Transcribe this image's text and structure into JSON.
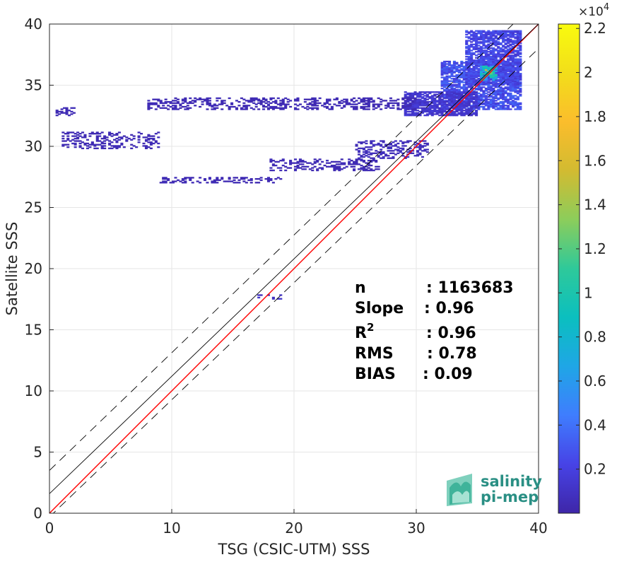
{
  "chart_data": {
    "type": "heatmap",
    "xlabel": "TSG (CSIC-UTM) SSS",
    "ylabel": "Satellite SSS",
    "xlim": [
      0,
      40
    ],
    "ylim": [
      0,
      40
    ],
    "xticks": [
      "0",
      "10",
      "20",
      "30",
      "40"
    ],
    "yticks": [
      "0",
      "5",
      "10",
      "15",
      "20",
      "25",
      "30",
      "35",
      "40"
    ],
    "grid": true,
    "colorbar": {
      "range": [
        0,
        2.22
      ],
      "multiplier": "×10",
      "multiplier_exp": "4",
      "ticks": [
        {
          "value": 0.2,
          "label": "0.2"
        },
        {
          "value": 0.4,
          "label": "0.4"
        },
        {
          "value": 0.6,
          "label": "0.6"
        },
        {
          "value": 0.8,
          "label": "0.8"
        },
        {
          "value": 1.0,
          "label": "1"
        },
        {
          "value": 1.2,
          "label": "1.2"
        },
        {
          "value": 1.4,
          "label": "1.4"
        },
        {
          "value": 1.6,
          "label": "1.6"
        },
        {
          "value": 1.8,
          "label": "1.8"
        },
        {
          "value": 2.0,
          "label": "2"
        },
        {
          "value": 2.2,
          "label": "2.2"
        }
      ],
      "colors": [
        "#3e26a8",
        "#4743e6",
        "#3f7dfe",
        "#1fa6e6",
        "#0bbfbf",
        "#2ec99a",
        "#8ccd5b",
        "#d2bb31",
        "#fbbd2c",
        "#f2de1a",
        "#f9fb0e"
      ]
    },
    "lines": [
      {
        "name": "identity",
        "color": "#ff0000",
        "points": [
          [
            0,
            0
          ],
          [
            40,
            40
          ]
        ]
      },
      {
        "name": "fit",
        "color": "#000000",
        "style": "solid",
        "points": [
          [
            0,
            1.6
          ],
          [
            40,
            40
          ]
        ]
      },
      {
        "name": "fit-upper",
        "color": "#000000",
        "style": "dashed",
        "points": [
          [
            0,
            3.5
          ],
          [
            40,
            42
          ]
        ]
      },
      {
        "name": "fit-lower",
        "color": "#000000",
        "style": "dashed",
        "points": [
          [
            0,
            -0.3
          ],
          [
            40,
            38
          ]
        ]
      }
    ],
    "density_regions": [
      {
        "x": [
          32.0,
          38.5
        ],
        "y": [
          33.0,
          37.0
        ],
        "level": 0.12
      },
      {
        "x": [
          34.0,
          38.5
        ],
        "y": [
          35.0,
          39.5
        ],
        "level": 0.1
      },
      {
        "x": [
          35.2,
          36.6
        ],
        "y": [
          35.4,
          36.6
        ],
        "level": 0.35
      },
      {
        "x": [
          35.6,
          36.2
        ],
        "y": [
          35.8,
          36.3
        ],
        "level": 0.55
      },
      {
        "x": [
          29.0,
          35.0
        ],
        "y": [
          32.5,
          34.5
        ],
        "level": 0.06
      },
      {
        "x": [
          8.0,
          30.0
        ],
        "y": [
          33.0,
          34.0
        ],
        "level": 0.02
      },
      {
        "x": [
          1.0,
          9.0
        ],
        "y": [
          29.8,
          31.2
        ],
        "level": 0.02
      },
      {
        "x": [
          9.0,
          19.0
        ],
        "y": [
          27.0,
          27.5
        ],
        "level": 0.02
      },
      {
        "x": [
          18.0,
          27.0
        ],
        "y": [
          28.0,
          29.0
        ],
        "level": 0.02
      },
      {
        "x": [
          25.0,
          31.0
        ],
        "y": [
          29.0,
          30.5
        ],
        "level": 0.03
      },
      {
        "x": [
          0.5,
          2.0
        ],
        "y": [
          32.5,
          33.2
        ],
        "level": 0.02
      },
      {
        "x": [
          17.0,
          19.0
        ],
        "y": [
          17.5,
          17.9
        ],
        "level": 0.04
      }
    ]
  },
  "stats": [
    {
      "label": "n",
      "sup": "",
      "value": ": 1163683"
    },
    {
      "label": "Slope",
      "sup": "",
      "value": ": 0.96"
    },
    {
      "label": "R",
      "sup": "2",
      "value": ": 0.96"
    },
    {
      "label": "RMS",
      "sup": "",
      "value": ": 0.78"
    },
    {
      "label": "BIAS",
      "sup": "",
      "value": ": 0.09"
    }
  ],
  "logo": {
    "line1": "salinity",
    "line2": "pi-mep"
  }
}
